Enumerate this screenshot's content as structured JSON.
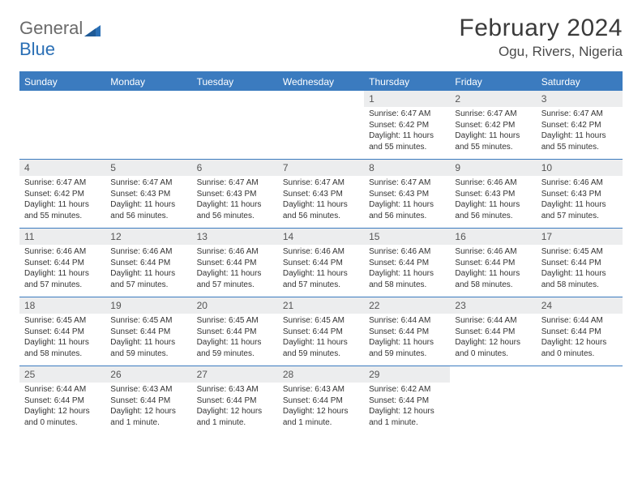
{
  "brand": {
    "part1": "General",
    "part2": "Blue"
  },
  "title": "February 2024",
  "location": "Ogu, Rivers, Nigeria",
  "colors": {
    "header_bg": "#3b7bbf",
    "row_divider": "#3b7bbf",
    "daynum_bg": "#ecedee",
    "text": "#333333",
    "logo_gray": "#6a6a6a",
    "logo_blue": "#2a6fb5",
    "page_bg": "#ffffff"
  },
  "typography": {
    "title_fontsize": 30,
    "location_fontsize": 17,
    "dayhead_fontsize": 12,
    "cell_fontsize": 10
  },
  "days": [
    "Sunday",
    "Monday",
    "Tuesday",
    "Wednesday",
    "Thursday",
    "Friday",
    "Saturday"
  ],
  "weeks": [
    [
      null,
      null,
      null,
      null,
      {
        "n": "1",
        "sr": "Sunrise: 6:47 AM",
        "ss": "Sunset: 6:42 PM",
        "d1": "Daylight: 11 hours",
        "d2": "and 55 minutes."
      },
      {
        "n": "2",
        "sr": "Sunrise: 6:47 AM",
        "ss": "Sunset: 6:42 PM",
        "d1": "Daylight: 11 hours",
        "d2": "and 55 minutes."
      },
      {
        "n": "3",
        "sr": "Sunrise: 6:47 AM",
        "ss": "Sunset: 6:42 PM",
        "d1": "Daylight: 11 hours",
        "d2": "and 55 minutes."
      }
    ],
    [
      {
        "n": "4",
        "sr": "Sunrise: 6:47 AM",
        "ss": "Sunset: 6:42 PM",
        "d1": "Daylight: 11 hours",
        "d2": "and 55 minutes."
      },
      {
        "n": "5",
        "sr": "Sunrise: 6:47 AM",
        "ss": "Sunset: 6:43 PM",
        "d1": "Daylight: 11 hours",
        "d2": "and 56 minutes."
      },
      {
        "n": "6",
        "sr": "Sunrise: 6:47 AM",
        "ss": "Sunset: 6:43 PM",
        "d1": "Daylight: 11 hours",
        "d2": "and 56 minutes."
      },
      {
        "n": "7",
        "sr": "Sunrise: 6:47 AM",
        "ss": "Sunset: 6:43 PM",
        "d1": "Daylight: 11 hours",
        "d2": "and 56 minutes."
      },
      {
        "n": "8",
        "sr": "Sunrise: 6:47 AM",
        "ss": "Sunset: 6:43 PM",
        "d1": "Daylight: 11 hours",
        "d2": "and 56 minutes."
      },
      {
        "n": "9",
        "sr": "Sunrise: 6:46 AM",
        "ss": "Sunset: 6:43 PM",
        "d1": "Daylight: 11 hours",
        "d2": "and 56 minutes."
      },
      {
        "n": "10",
        "sr": "Sunrise: 6:46 AM",
        "ss": "Sunset: 6:43 PM",
        "d1": "Daylight: 11 hours",
        "d2": "and 57 minutes."
      }
    ],
    [
      {
        "n": "11",
        "sr": "Sunrise: 6:46 AM",
        "ss": "Sunset: 6:44 PM",
        "d1": "Daylight: 11 hours",
        "d2": "and 57 minutes."
      },
      {
        "n": "12",
        "sr": "Sunrise: 6:46 AM",
        "ss": "Sunset: 6:44 PM",
        "d1": "Daylight: 11 hours",
        "d2": "and 57 minutes."
      },
      {
        "n": "13",
        "sr": "Sunrise: 6:46 AM",
        "ss": "Sunset: 6:44 PM",
        "d1": "Daylight: 11 hours",
        "d2": "and 57 minutes."
      },
      {
        "n": "14",
        "sr": "Sunrise: 6:46 AM",
        "ss": "Sunset: 6:44 PM",
        "d1": "Daylight: 11 hours",
        "d2": "and 57 minutes."
      },
      {
        "n": "15",
        "sr": "Sunrise: 6:46 AM",
        "ss": "Sunset: 6:44 PM",
        "d1": "Daylight: 11 hours",
        "d2": "and 58 minutes."
      },
      {
        "n": "16",
        "sr": "Sunrise: 6:46 AM",
        "ss": "Sunset: 6:44 PM",
        "d1": "Daylight: 11 hours",
        "d2": "and 58 minutes."
      },
      {
        "n": "17",
        "sr": "Sunrise: 6:45 AM",
        "ss": "Sunset: 6:44 PM",
        "d1": "Daylight: 11 hours",
        "d2": "and 58 minutes."
      }
    ],
    [
      {
        "n": "18",
        "sr": "Sunrise: 6:45 AM",
        "ss": "Sunset: 6:44 PM",
        "d1": "Daylight: 11 hours",
        "d2": "and 58 minutes."
      },
      {
        "n": "19",
        "sr": "Sunrise: 6:45 AM",
        "ss": "Sunset: 6:44 PM",
        "d1": "Daylight: 11 hours",
        "d2": "and 59 minutes."
      },
      {
        "n": "20",
        "sr": "Sunrise: 6:45 AM",
        "ss": "Sunset: 6:44 PM",
        "d1": "Daylight: 11 hours",
        "d2": "and 59 minutes."
      },
      {
        "n": "21",
        "sr": "Sunrise: 6:45 AM",
        "ss": "Sunset: 6:44 PM",
        "d1": "Daylight: 11 hours",
        "d2": "and 59 minutes."
      },
      {
        "n": "22",
        "sr": "Sunrise: 6:44 AM",
        "ss": "Sunset: 6:44 PM",
        "d1": "Daylight: 11 hours",
        "d2": "and 59 minutes."
      },
      {
        "n": "23",
        "sr": "Sunrise: 6:44 AM",
        "ss": "Sunset: 6:44 PM",
        "d1": "Daylight: 12 hours",
        "d2": "and 0 minutes."
      },
      {
        "n": "24",
        "sr": "Sunrise: 6:44 AM",
        "ss": "Sunset: 6:44 PM",
        "d1": "Daylight: 12 hours",
        "d2": "and 0 minutes."
      }
    ],
    [
      {
        "n": "25",
        "sr": "Sunrise: 6:44 AM",
        "ss": "Sunset: 6:44 PM",
        "d1": "Daylight: 12 hours",
        "d2": "and 0 minutes."
      },
      {
        "n": "26",
        "sr": "Sunrise: 6:43 AM",
        "ss": "Sunset: 6:44 PM",
        "d1": "Daylight: 12 hours",
        "d2": "and 1 minute."
      },
      {
        "n": "27",
        "sr": "Sunrise: 6:43 AM",
        "ss": "Sunset: 6:44 PM",
        "d1": "Daylight: 12 hours",
        "d2": "and 1 minute."
      },
      {
        "n": "28",
        "sr": "Sunrise: 6:43 AM",
        "ss": "Sunset: 6:44 PM",
        "d1": "Daylight: 12 hours",
        "d2": "and 1 minute."
      },
      {
        "n": "29",
        "sr": "Sunrise: 6:42 AM",
        "ss": "Sunset: 6:44 PM",
        "d1": "Daylight: 12 hours",
        "d2": "and 1 minute."
      },
      null,
      null
    ]
  ]
}
